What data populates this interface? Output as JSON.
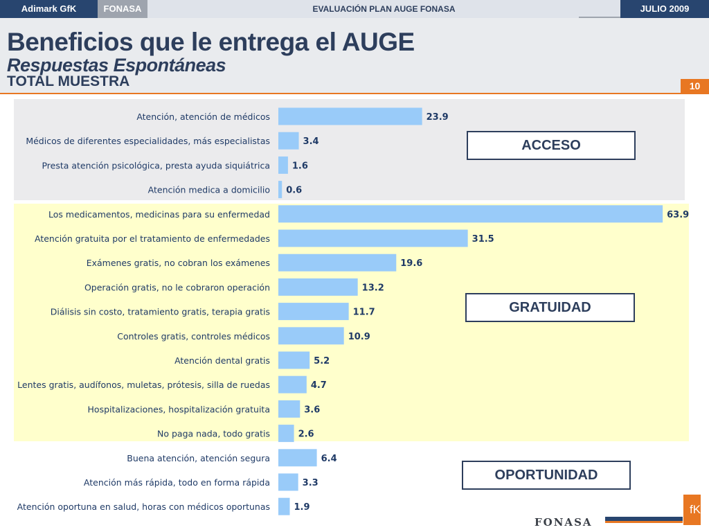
{
  "topbar": {
    "brand": "Adimark GfK",
    "fonasa": "FONASA",
    "title": "EVALUACIÓN PLAN AUGE FONASA",
    "date": "JULIO 2009"
  },
  "header": {
    "title": "Beneficios que le entrega el AUGE",
    "subtitle": "Respuestas Espontáneas",
    "sample": "TOTAL MUESTRA",
    "page_number": "10"
  },
  "groups": {
    "acceso": "ACCESO",
    "gratuidad": "GRATUIDAD",
    "oportunidad": "OPORTUNIDAD"
  },
  "colors": {
    "bar": "#99cbf9",
    "acceso_bg": "#ebebed",
    "gratuidad_bg": "#ffffcc",
    "accent_orange": "#e87722",
    "navy": "#28456f"
  },
  "footer": {
    "logo": "FONASA",
    "gfk": "fK"
  },
  "chart_data": {
    "type": "bar",
    "orientation": "horizontal",
    "categories": [
      "Atención, atención de médicos",
      "Médicos de diferentes especialidades, más especialistas",
      "Presta atención psicológica, presta ayuda siquiátrica",
      "Atención medica a domicilio",
      "Los medicamentos, medicinas para su enfermedad",
      "Atención gratuita por el tratamiento de enfermedades",
      "Exámenes gratis, no cobran los exámenes",
      "Operación gratis, no le cobraron operación",
      "Diálisis sin costo, tratamiento gratis, terapia gratis",
      "Controles gratis, controles médicos",
      "Atención dental gratis",
      "Lentes gratis, audífonos, muletas, prótesis, silla de ruedas",
      "Hospitalizaciones, hospitalización gratuita",
      "No paga nada, todo gratis",
      "Buena atención, atención segura",
      "Atención más rápida, todo en forma rápida",
      "Atención oportuna en salud, horas con médicos oportunas"
    ],
    "values": [
      23.9,
      3.4,
      1.6,
      0.6,
      63.9,
      31.5,
      19.6,
      13.2,
      11.7,
      10.9,
      5.2,
      4.7,
      3.6,
      2.6,
      6.4,
      3.3,
      1.9
    ],
    "groups": [
      {
        "name": "ACCESO",
        "start": 0,
        "end": 3
      },
      {
        "name": "GRATUIDAD",
        "start": 4,
        "end": 13
      },
      {
        "name": "OPORTUNIDAD",
        "start": 14,
        "end": 16
      }
    ],
    "xlim": [
      0,
      64
    ]
  }
}
